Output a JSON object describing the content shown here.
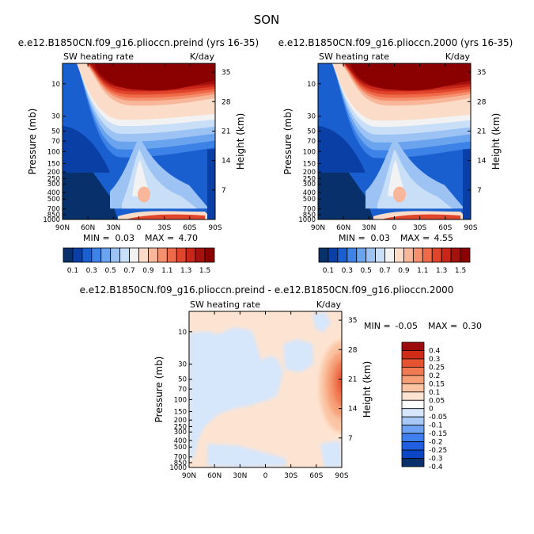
{
  "page_title": "SON",
  "colors": {
    "main": [
      "#08306b",
      "#0a3fa5",
      "#1a5fd0",
      "#3d82e6",
      "#6aa4ee",
      "#9cc3f3",
      "#c9dff8",
      "#f2f2f2",
      "#fbdcc8",
      "#f8b79a",
      "#f4906e",
      "#ee6a49",
      "#e0452c",
      "#c9261a",
      "#a5120e",
      "#8b0000"
    ],
    "diff": [
      "#08306b",
      "#0b47c4",
      "#2060e0",
      "#3f80ee",
      "#6ea2f3",
      "#a8c8f6",
      "#d6e6fb",
      "#ffffff",
      "#fde4d2",
      "#fbc4a3",
      "#f7a078",
      "#f17a52",
      "#e55330",
      "#cf2c17",
      "#9d0a0a"
    ]
  },
  "chart_data": [
    {
      "type": "heatmap",
      "panel": "left",
      "title": "e.e12.B1850CN.f09_g16.plioccn.preind (yrs 16-35)",
      "left_label": "SW heating rate",
      "right_label": "K/day",
      "ylabel": "Pressure (mb)",
      "ylabel_right": "Height (km)",
      "x_ticks": [
        "90N",
        "60N",
        "30N",
        "0",
        "30S",
        "60S",
        "90S"
      ],
      "y_ticks": [
        "10",
        "30",
        "50",
        "70",
        "100",
        "150",
        "200",
        "250",
        "300",
        "400",
        "500",
        "700",
        "850",
        "1000"
      ],
      "y_right_ticks": [
        "35",
        "28",
        "21",
        "14",
        "7"
      ],
      "min_label": "MIN =",
      "min_value": "0.03",
      "max_label": "MAX =",
      "max_value": "4.70",
      "colorbar_labels": [
        "0.1",
        "0.3",
        "0.5",
        "0.7",
        "0.9",
        "1.1",
        "1.3",
        "1.5"
      ],
      "ylim": [
        1000,
        5
      ],
      "xlim": [
        90,
        -90
      ]
    },
    {
      "type": "heatmap",
      "panel": "right",
      "title": "e.e12.B1850CN.f09_g16.plioccn.2000 (yrs 16-35)",
      "left_label": "SW heating rate",
      "right_label": "K/day",
      "ylabel": "Pressure (mb)",
      "ylabel_right": "Height (km)",
      "x_ticks": [
        "90N",
        "60N",
        "30N",
        "0",
        "30S",
        "60S",
        "90S"
      ],
      "y_ticks": [
        "10",
        "30",
        "50",
        "70",
        "100",
        "150",
        "200",
        "250",
        "300",
        "400",
        "500",
        "700",
        "850",
        "1000"
      ],
      "y_right_ticks": [
        "35",
        "28",
        "21",
        "14",
        "7"
      ],
      "min_label": "MIN =",
      "min_value": "0.03",
      "max_label": "MAX =",
      "max_value": "4.55",
      "colorbar_labels": [
        "0.1",
        "0.3",
        "0.5",
        "0.7",
        "0.9",
        "1.1",
        "1.3",
        "1.5"
      ],
      "ylim": [
        1000,
        5
      ],
      "xlim": [
        90,
        -90
      ]
    },
    {
      "type": "heatmap",
      "panel": "difference",
      "title": "e.e12.B1850CN.f09_g16.plioccn.preind - e.e12.B1850CN.f09_g16.plioccn.2000",
      "left_label": "SW heating rate",
      "right_label": "K/day",
      "ylabel": "Pressure (mb)",
      "ylabel_right": "Height (km)",
      "x_ticks": [
        "90N",
        "60N",
        "30N",
        "0",
        "30S",
        "60S",
        "90S"
      ],
      "y_ticks": [
        "10",
        "30",
        "50",
        "70",
        "100",
        "150",
        "200",
        "250",
        "300",
        "400",
        "500",
        "700",
        "850",
        "1000"
      ],
      "y_right_ticks": [
        "35",
        "28",
        "21",
        "14",
        "7"
      ],
      "min_label": "MIN =",
      "min_value": "-0.05",
      "max_label": "MAX =",
      "max_value": "0.30",
      "colorbar_labels": [
        "0.4",
        "0.3",
        "0.25",
        "0.2",
        "0.15",
        "0.1",
        "0.05",
        "0",
        "-0.05",
        "-0.1",
        "-0.15",
        "-0.2",
        "-0.25",
        "-0.3",
        "-0.4"
      ],
      "ylim": [
        1000,
        5
      ],
      "xlim": [
        90,
        -90
      ]
    }
  ]
}
